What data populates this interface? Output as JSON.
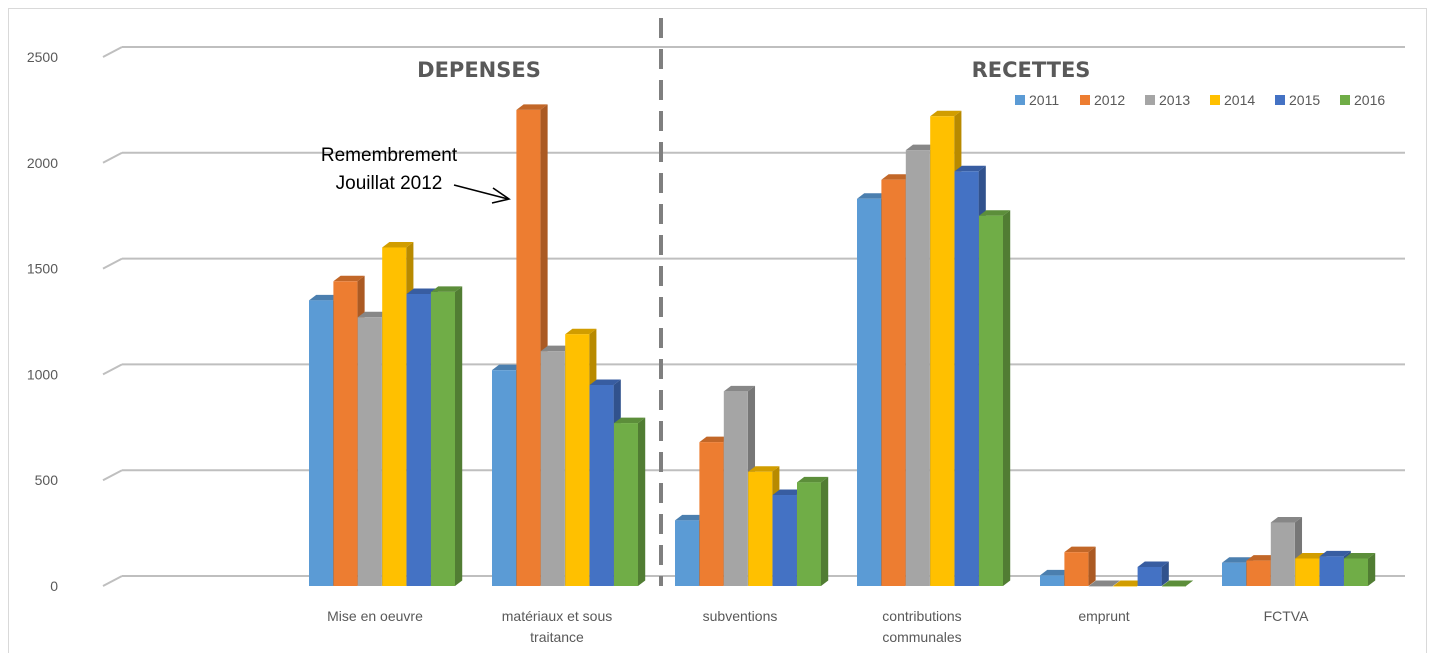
{
  "chart_data": {
    "type": "bar",
    "title": "",
    "xlabel": "",
    "ylabel": "",
    "ylim": [
      0,
      2500
    ],
    "yticks": [
      0,
      500,
      1000,
      1500,
      2000,
      2500
    ],
    "grid": true,
    "style": "3d-clustered-column",
    "legend_position": "top-right",
    "categories": [
      [
        "Mise en oeuvre"
      ],
      [
        "matériaux et sous",
        "traitance"
      ],
      [
        "subventions"
      ],
      [
        "contributions",
        "communales"
      ],
      [
        "emprunt"
      ],
      [
        "FCTVA"
      ]
    ],
    "series": [
      {
        "name": "2011",
        "color": "#5b9bd5",
        "values": [
          1350,
          1020,
          310,
          1830,
          50,
          110
        ]
      },
      {
        "name": "2012",
        "color": "#ed7d31",
        "values": [
          1440,
          2250,
          680,
          1920,
          160,
          120
        ]
      },
      {
        "name": "2013",
        "color": "#a5a5a5",
        "values": [
          1270,
          1110,
          920,
          2060,
          0,
          300
        ]
      },
      {
        "name": "2014",
        "color": "#ffc000",
        "values": [
          1600,
          1190,
          540,
          2220,
          0,
          130
        ]
      },
      {
        "name": "2015",
        "color": "#4472c4",
        "values": [
          1380,
          950,
          430,
          1960,
          90,
          140
        ]
      },
      {
        "name": "2016",
        "color": "#70ad47",
        "values": [
          1390,
          770,
          490,
          1750,
          0,
          130
        ]
      }
    ],
    "section_labels": [
      "DEPENSES",
      "RECETTES"
    ],
    "annotation": {
      "lines": [
        "Remembrement",
        "Jouillat 2012"
      ],
      "target_series": "2012",
      "target_category": 1
    }
  }
}
